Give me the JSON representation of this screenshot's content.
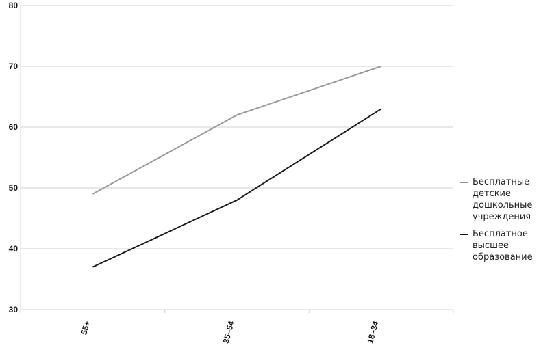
{
  "chart_data": {
    "type": "line",
    "title": "",
    "xlabel": "",
    "ylabel": "",
    "categories": [
      "55+",
      "35–54",
      "18–34"
    ],
    "ylim": [
      30,
      80
    ],
    "yticks": [
      "30",
      "40",
      "50",
      "60",
      "70",
      "80"
    ],
    "grid": "horizontal",
    "legend_position": "right",
    "series": [
      {
        "name": "Бесплатные детские дошкольные учреждения",
        "values": [
          49,
          62,
          70
        ],
        "color": "#999999"
      },
      {
        "name": "Бесплатное высшее образование",
        "values": [
          37,
          48,
          63
        ],
        "color": "#1a1a1a"
      }
    ]
  }
}
